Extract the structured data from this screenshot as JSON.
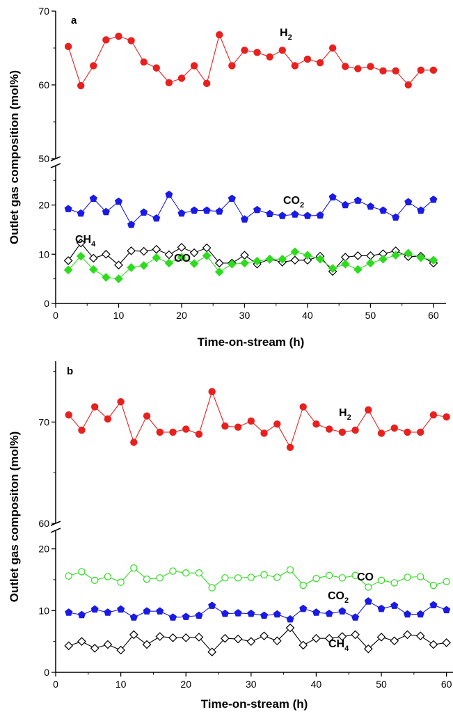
{
  "chart_data": [
    {
      "type": "line",
      "panel_label": "a",
      "xlabel": "Time-on-stream (h)",
      "ylabel": "Outlet gas composition (mol%)",
      "xlim": [
        0,
        62
      ],
      "x_ticks": [
        0,
        10,
        20,
        30,
        40,
        50,
        60
      ],
      "y_axis_break": true,
      "ylim_lower": [
        0,
        28
      ],
      "ylim_upper": [
        50,
        70
      ],
      "y_ticks_lower": [
        0,
        10,
        20
      ],
      "y_ticks_upper": [
        50,
        60,
        70
      ],
      "x": [
        2,
        4,
        6,
        8,
        10,
        12,
        14,
        16,
        18,
        20,
        22,
        24,
        26,
        28,
        30,
        32,
        34,
        36,
        38,
        40,
        42,
        44,
        46,
        48,
        50,
        52,
        54,
        56,
        58,
        60
      ],
      "series": [
        {
          "name": "H2",
          "label_main": "H",
          "label_sub": "2",
          "color": "#e8201e",
          "marker": "circle",
          "filled": true,
          "values": [
            65.2,
            59.9,
            62.6,
            66.1,
            66.6,
            66.0,
            63.1,
            62.3,
            60.3,
            60.9,
            62.6,
            60.2,
            66.8,
            62.6,
            64.7,
            64.4,
            63.8,
            64.7,
            62.6,
            63.5,
            63.0,
            65.0,
            62.5,
            62.2,
            62.5,
            61.9,
            61.9,
            60.0,
            62.0,
            62.0
          ]
        },
        {
          "name": "CO2",
          "label_main": "CO",
          "label_sub": "2",
          "color": "#1a1ae6",
          "marker": "pentagon",
          "filled": true,
          "values": [
            19.2,
            18.3,
            21.3,
            18.6,
            20.7,
            16.0,
            18.5,
            17.3,
            22.1,
            18.3,
            18.9,
            18.9,
            18.7,
            21.3,
            17.1,
            19.0,
            18.2,
            17.8,
            18.1,
            17.8,
            17.9,
            21.6,
            20.0,
            20.9,
            19.7,
            18.9,
            17.5,
            20.6,
            18.9,
            21.1
          ]
        },
        {
          "name": "CH4",
          "label_main": "CH",
          "label_sub": "4",
          "color": "#000000",
          "marker": "diamond",
          "filled": false,
          "values": [
            8.7,
            12.3,
            9.2,
            10.0,
            7.8,
            10.7,
            10.6,
            11.0,
            9.9,
            11.4,
            10.3,
            11.3,
            8.2,
            8.2,
            9.8,
            8.0,
            9.0,
            8.4,
            8.8,
            8.8,
            9.6,
            6.5,
            9.4,
            9.7,
            9.7,
            10.1,
            10.7,
            9.5,
            9.6,
            8.2
          ]
        },
        {
          "name": "CO",
          "label_main": "CO",
          "label_sub": "",
          "color": "#2edc1e",
          "marker": "diamond",
          "filled": true,
          "values": [
            6.8,
            9.6,
            6.9,
            5.3,
            5.0,
            7.3,
            7.7,
            9.3,
            8.2,
            9.4,
            8.1,
            9.7,
            6.4,
            8.0,
            8.2,
            8.6,
            9.0,
            9.0,
            10.5,
            9.8,
            9.0,
            7.1,
            8.0,
            6.9,
            8.2,
            9.0,
            9.8,
            10.2,
            9.3,
            8.8
          ]
        }
      ]
    },
    {
      "type": "line",
      "panel_label": "b",
      "xlabel": "Time-on-stream (h)",
      "ylabel": "Outlet gas compositon (mol%)",
      "xlim": [
        0,
        61
      ],
      "x_ticks": [
        0,
        10,
        20,
        30,
        40,
        50,
        60
      ],
      "y_axis_break": true,
      "ylim_lower": [
        0,
        23
      ],
      "ylim_upper": [
        60,
        76
      ],
      "y_ticks_lower": [
        0,
        10,
        20
      ],
      "y_ticks_upper": [
        60,
        70
      ],
      "x": [
        2,
        4,
        6,
        8,
        10,
        12,
        14,
        16,
        18,
        20,
        22,
        24,
        26,
        28,
        30,
        32,
        34,
        36,
        38,
        40,
        42,
        44,
        46,
        48,
        50,
        52,
        54,
        56,
        58,
        60
      ],
      "series": [
        {
          "name": "H2",
          "label_main": "H",
          "label_sub": "2",
          "color": "#e8201e",
          "marker": "circle",
          "filled": true,
          "values": [
            70.7,
            69.2,
            71.5,
            70.3,
            72.0,
            68.0,
            70.6,
            69.0,
            69.0,
            69.3,
            68.8,
            73.0,
            69.6,
            69.5,
            70.1,
            68.9,
            69.8,
            67.5,
            71.5,
            69.8,
            69.3,
            69.0,
            69.2,
            71.2,
            68.9,
            69.4,
            69.0,
            69.0,
            70.7,
            70.5
          ]
        },
        {
          "name": "CO",
          "label_main": "CO",
          "label_sub": "",
          "color": "#2edc1e",
          "marker": "circle",
          "filled": false,
          "values": [
            15.6,
            16.3,
            14.9,
            15.5,
            14.6,
            16.9,
            15.1,
            15.3,
            16.4,
            16.1,
            16.1,
            13.7,
            15.3,
            15.3,
            15.4,
            15.8,
            15.4,
            16.6,
            14.1,
            15.2,
            15.7,
            15.3,
            15.7,
            13.8,
            14.9,
            14.5,
            15.4,
            15.5,
            14.1,
            14.7
          ]
        },
        {
          "name": "CO2",
          "label_main": "CO",
          "label_sub": "2",
          "color": "#1a1ae6",
          "marker": "pentagon",
          "filled": true,
          "values": [
            9.7,
            9.3,
            10.2,
            9.7,
            10.2,
            8.9,
            9.9,
            9.9,
            8.9,
            9.0,
            9.2,
            10.8,
            9.5,
            9.6,
            9.5,
            9.2,
            9.4,
            8.6,
            10.3,
            9.7,
            9.5,
            9.9,
            8.9,
            11.5,
            10.3,
            10.8,
            9.4,
            9.4,
            10.9,
            10.1
          ]
        },
        {
          "name": "CH4",
          "label_main": "CH",
          "label_sub": "4",
          "color": "#000000",
          "marker": "diamond",
          "filled": false,
          "values": [
            4.3,
            5.0,
            3.9,
            4.5,
            3.6,
            6.1,
            4.5,
            5.8,
            5.6,
            5.6,
            5.7,
            3.3,
            5.5,
            5.4,
            5.0,
            5.9,
            5.1,
            7.2,
            4.4,
            5.5,
            5.5,
            5.8,
            6.1,
            3.8,
            5.7,
            5.1,
            6.1,
            5.9,
            4.5,
            4.8
          ]
        }
      ]
    }
  ]
}
